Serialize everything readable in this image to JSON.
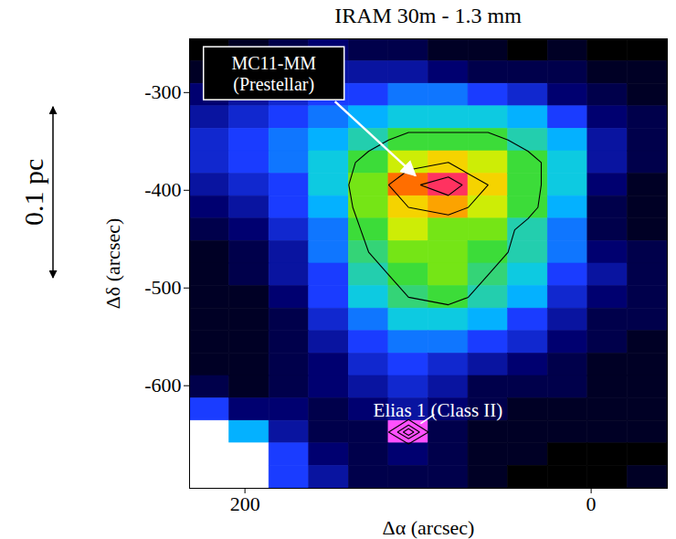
{
  "chart_data": {
    "type": "heatmap",
    "title": "IRAM 30m - 1.3 mm",
    "x_label": "Δα (arcsec)",
    "y_label": "Δδ (arcsec)",
    "xlim": [
      232,
      -44
    ],
    "xticks": [
      200,
      0
    ],
    "ylim": [
      -705,
      -245
    ],
    "yticks": [
      -300,
      -400,
      -500,
      -600
    ],
    "cells": {
      "x_edges": [
        232,
        209,
        186,
        163,
        140,
        117,
        94,
        71,
        48,
        25,
        2,
        -21,
        -44
      ],
      "y_edges": [
        -245,
        -268,
        -291,
        -314,
        -337,
        -360,
        -383,
        -406,
        -429,
        -452,
        -475,
        -498,
        -521,
        -544,
        -567,
        -590,
        -613,
        -636,
        -659,
        -682,
        -705
      ],
      "values": [
        [
          0,
          0.5,
          1,
          1.5,
          1,
          1,
          0.5,
          0.5,
          0,
          0.5,
          0,
          0
        ],
        [
          0.5,
          1,
          1.5,
          2,
          2,
          2,
          1.5,
          1,
          1,
          1,
          0.5,
          0.5
        ],
        [
          1.5,
          2,
          2.5,
          3,
          3,
          3.5,
          3.5,
          3,
          2.5,
          1.5,
          1,
          0.5
        ],
        [
          2,
          2.5,
          3,
          3.5,
          4,
          4.5,
          4.5,
          4.5,
          4,
          3,
          1.5,
          1
        ],
        [
          2.5,
          3,
          3.5,
          4,
          5,
          6,
          6,
          6,
          5,
          4,
          2,
          1
        ],
        [
          2.5,
          3,
          3.5,
          4.5,
          6,
          7,
          7.5,
          7,
          6,
          4.5,
          2,
          1
        ],
        [
          2,
          2.5,
          3,
          4.5,
          6.5,
          8.5,
          9.5,
          7.5,
          6,
          4.5,
          1.5,
          0.5
        ],
        [
          1.5,
          2,
          3,
          4,
          6.5,
          7.5,
          8,
          7,
          6,
          4,
          1,
          0.5
        ],
        [
          1,
          1.5,
          2.5,
          3.5,
          6,
          7,
          6.5,
          6.5,
          5,
          3.5,
          1,
          0.5
        ],
        [
          0.5,
          1,
          2,
          3.5,
          5.5,
          6.5,
          6.5,
          6,
          5,
          3.5,
          1.5,
          1
        ],
        [
          0.5,
          1,
          2,
          3,
          5,
          6,
          6.5,
          5.5,
          4.5,
          3,
          2,
          1
        ],
        [
          0.5,
          0.5,
          1.5,
          3,
          4.5,
          5.5,
          6,
          5,
          4,
          2.5,
          1.5,
          1
        ],
        [
          0.5,
          0.5,
          1,
          2.5,
          3.5,
          4.5,
          4.5,
          4,
          3,
          2,
          1,
          1
        ],
        [
          0.5,
          0.5,
          1,
          2,
          3,
          3.5,
          3.5,
          3,
          2.5,
          1.5,
          1,
          0.5
        ],
        [
          0.5,
          0.5,
          1,
          1.5,
          2.5,
          3,
          2.5,
          2,
          1.5,
          1,
          0.5,
          0.5
        ],
        [
          1,
          0.5,
          1,
          1.5,
          2,
          2.5,
          2,
          1,
          1,
          1,
          0.5,
          0.5
        ],
        [
          3,
          1.5,
          1.5,
          1,
          1.5,
          2,
          1.5,
          1,
          0.5,
          0.5,
          0.5,
          0.5
        ],
        [
          null,
          4,
          2,
          1,
          1,
          10,
          1,
          0.5,
          0.5,
          0.5,
          0.5,
          0.5
        ],
        [
          null,
          null,
          3,
          1.5,
          1,
          1.5,
          1,
          0.5,
          0.5,
          0,
          0,
          0
        ],
        [
          null,
          null,
          3,
          2,
          1,
          1,
          1,
          0.5,
          0,
          0,
          0,
          0.5
        ]
      ],
      "range": [
        0,
        10
      ]
    },
    "contour_levels": [
      5.5,
      7.5,
      8.8
    ],
    "sources": [
      {
        "label": "MC11-MM (Prestellar)",
        "x": 96,
        "y": -391
      },
      {
        "label": "Elias 1 (Class II)",
        "x": 103,
        "y": -641
      }
    ],
    "scale_bar": {
      "label": "0.1 pc",
      "y": [
        -315,
        -490
      ]
    }
  }
}
